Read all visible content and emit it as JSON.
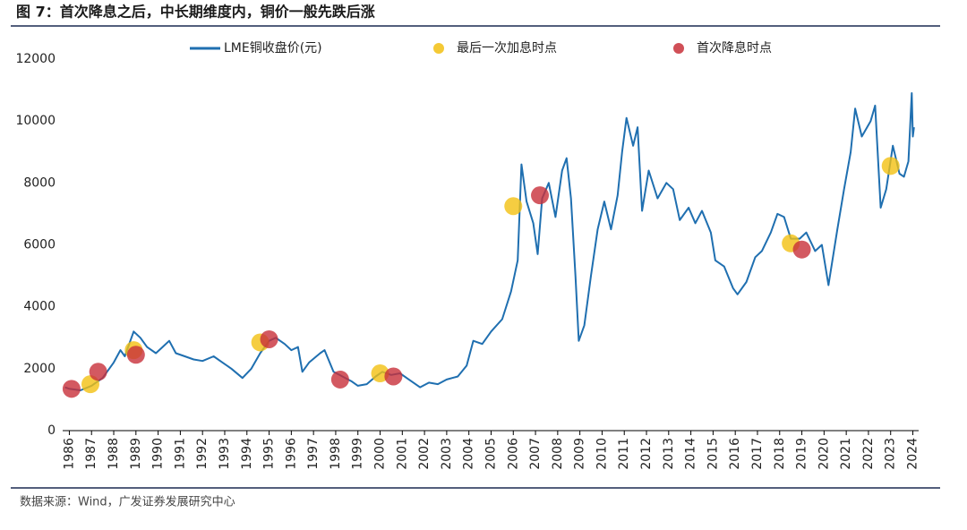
{
  "chart_data": {
    "type": "line",
    "title": "图 7：首次降息之后，中长期维度内，铜价一般先跌后涨",
    "source": "数据来源：Wind，广发证券发展研究中心",
    "xlim": [
      1985.7,
      2024.1
    ],
    "ylim": [
      0,
      12000
    ],
    "xticks": [
      1986,
      1987,
      1988,
      1989,
      1990,
      1991,
      1992,
      1993,
      1994,
      1995,
      1996,
      1997,
      1998,
      1999,
      2000,
      2001,
      2002,
      2003,
      2004,
      2005,
      2006,
      2007,
      2008,
      2009,
      2010,
      2011,
      2012,
      2013,
      2014,
      2015,
      2016,
      2017,
      2018,
      2019,
      2020,
      2021,
      2022,
      2023,
      2024
    ],
    "yticks": [
      0,
      2000,
      4000,
      6000,
      8000,
      10000,
      12000
    ],
    "grid": false,
    "legend": "top",
    "series": [
      {
        "name": "LME铜收盘价(元)",
        "type": "line",
        "color": "#1f6fb0",
        "x": [
          1985.8,
          1986.0,
          1986.5,
          1987.0,
          1987.5,
          1988.0,
          1988.3,
          1988.5,
          1988.9,
          1989.2,
          1989.5,
          1989.9,
          1990.2,
          1990.5,
          1990.8,
          1991.2,
          1991.6,
          1992.0,
          1992.5,
          1992.9,
          1993.3,
          1993.8,
          1994.2,
          1994.6,
          1995.0,
          1995.3,
          1995.7,
          1996.0,
          1996.3,
          1996.5,
          1996.8,
          1997.3,
          1997.5,
          1997.9,
          1998.3,
          1998.7,
          1999.0,
          1999.4,
          1999.8,
          2000.1,
          2000.5,
          2000.9,
          2001.3,
          2001.8,
          2002.2,
          2002.6,
          2003.0,
          2003.5,
          2003.9,
          2004.2,
          2004.6,
          2005.0,
          2005.5,
          2005.9,
          2006.2,
          2006.37,
          2006.6,
          2006.9,
          2007.1,
          2007.3,
          2007.6,
          2007.9,
          2008.2,
          2008.4,
          2008.6,
          2008.8,
          2008.95,
          2009.2,
          2009.5,
          2009.8,
          2010.1,
          2010.4,
          2010.7,
          2010.9,
          2011.1,
          2011.4,
          2011.6,
          2011.8,
          2012.1,
          2012.5,
          2012.9,
          2013.2,
          2013.5,
          2013.9,
          2014.2,
          2014.5,
          2014.9,
          2015.1,
          2015.5,
          2015.9,
          2016.1,
          2016.5,
          2016.9,
          2017.2,
          2017.6,
          2017.9,
          2018.2,
          2018.5,
          2018.9,
          2019.2,
          2019.6,
          2019.9,
          2020.2,
          2020.6,
          2020.9,
          2021.2,
          2021.4,
          2021.7,
          2022.1,
          2022.3,
          2022.55,
          2022.8,
          2023.1,
          2023.4,
          2023.6,
          2023.8,
          2023.95,
          2024.0,
          2024.05
        ],
        "y": [
          1400,
          1350,
          1300,
          1450,
          1700,
          2200,
          2600,
          2400,
          3200,
          3000,
          2700,
          2500,
          2700,
          2900,
          2500,
          2400,
          2300,
          2250,
          2400,
          2200,
          2000,
          1700,
          2000,
          2500,
          2900,
          3000,
          2800,
          2600,
          2700,
          1900,
          2200,
          2500,
          2600,
          1900,
          1750,
          1600,
          1450,
          1500,
          1750,
          1900,
          1800,
          1850,
          1650,
          1400,
          1550,
          1500,
          1650,
          1750,
          2100,
          2900,
          2800,
          3200,
          3600,
          4500,
          5500,
          8600,
          7400,
          6700,
          5700,
          7500,
          8000,
          6900,
          8400,
          8800,
          7500,
          5000,
          2900,
          3400,
          5000,
          6500,
          7400,
          6500,
          7600,
          9000,
          10100,
          9200,
          9800,
          7100,
          8400,
          7500,
          8000,
          7800,
          6800,
          7200,
          6700,
          7100,
          6400,
          5500,
          5300,
          4600,
          4400,
          4800,
          5600,
          5800,
          6400,
          7000,
          6900,
          6200,
          6200,
          6400,
          5800,
          6000,
          4700,
          6500,
          7800,
          9000,
          10400,
          9500,
          10000,
          10500,
          7200,
          7800,
          9200,
          8300,
          8200,
          8700,
          10900,
          9500,
          9800
        ]
      },
      {
        "name": "最后一次加息时点",
        "type": "scatter",
        "color": "#f2c012",
        "x": [
          1986.95,
          1988.9,
          1994.6,
          2000.0,
          2006.0,
          2018.5,
          2023.0
        ],
        "y": [
          1500,
          2600,
          2850,
          1850,
          7250,
          6050,
          8550
        ]
      },
      {
        "name": "首次降息时点",
        "type": "scatter",
        "color": "#c8303a",
        "x": [
          1986.1,
          1987.3,
          1989.0,
          1995.0,
          1998.2,
          2000.6,
          2007.2,
          2019.0
        ],
        "y": [
          1350,
          1900,
          2450,
          2950,
          1650,
          1750,
          7600,
          5850
        ]
      }
    ]
  }
}
